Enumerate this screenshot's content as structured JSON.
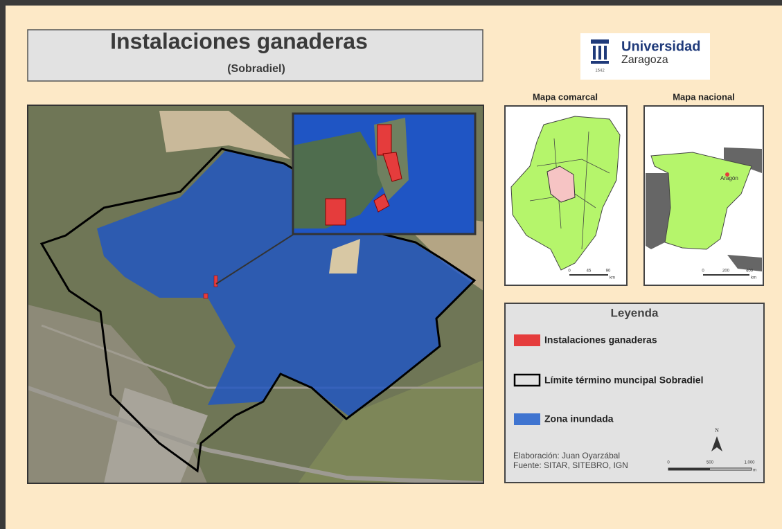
{
  "header": {
    "title": "Instalaciones ganaderas",
    "subtitle": "(Sobradiel)"
  },
  "logo": {
    "name": "Universidad",
    "city": "Zaragoza",
    "year": "1542"
  },
  "regional_map": {
    "title": "Mapa comarcal",
    "scale": [
      "0",
      "45",
      "90"
    ],
    "unit": "km"
  },
  "national_map": {
    "title": "Mapa nacional",
    "label": "Aragón",
    "scale": [
      "0",
      "200",
      "400"
    ],
    "unit": "km"
  },
  "legend": {
    "title": "Leyenda",
    "items": [
      "Instalaciones ganaderas",
      "Límite término muncipal Sobradiel",
      "Zona inundada"
    ],
    "credits": [
      "Elaboración: Juan Oyarzábal",
      "Fuente: SITAR, SITEBRO, IGN"
    ],
    "north": "N",
    "scale": [
      "0",
      "500",
      "1.000"
    ],
    "unit": "m"
  }
}
